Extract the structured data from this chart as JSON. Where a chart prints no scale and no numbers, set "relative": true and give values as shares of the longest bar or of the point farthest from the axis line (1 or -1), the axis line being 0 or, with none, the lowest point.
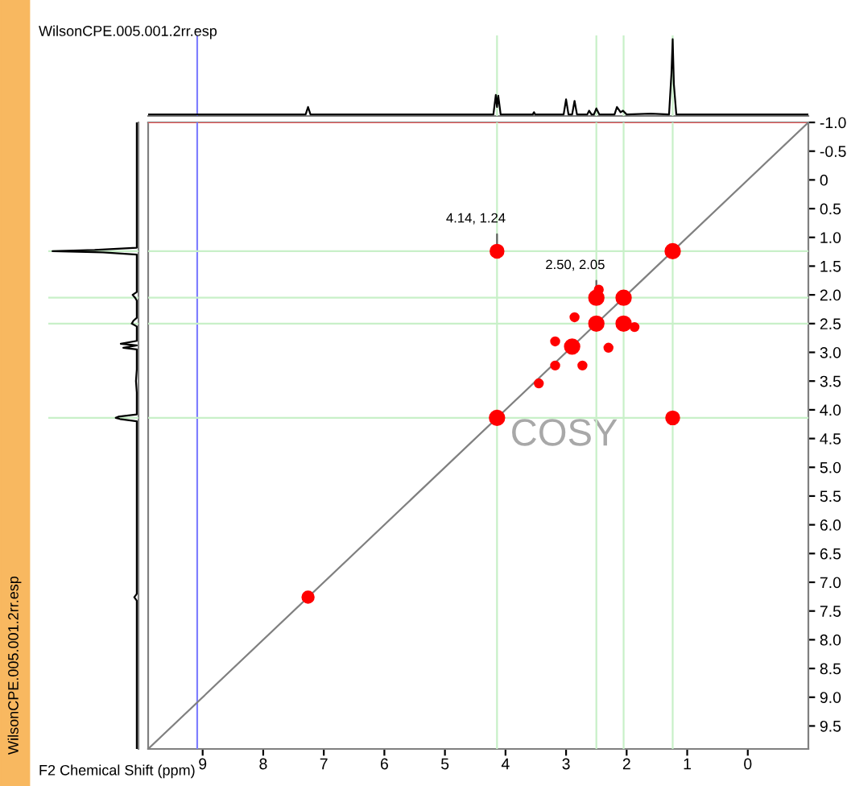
{
  "chart_data": [
    {
      "type": "line",
      "title": "WilsonCPE.005.001.2rr.esp",
      "relative": true,
      "xlim": [
        9.9,
        -1.0
      ],
      "tick_labels": false,
      "grid": false,
      "ref_lines": [
        {
          "axis": "x",
          "value": 9.09,
          "color": "#7f7fff"
        },
        {
          "axis": "x",
          "value": 4.14,
          "color": "#c8f0c8"
        },
        {
          "axis": "x",
          "value": 2.5,
          "color": "#c8f0c8"
        },
        {
          "axis": "x",
          "value": 2.05,
          "color": "#c8f0c8"
        },
        {
          "axis": "x",
          "value": 1.24,
          "color": "#c8f0c8"
        }
      ],
      "series": [
        {
          "color": "#000000",
          "x": [
            9.9,
            7.3,
            7.26,
            7.22,
            4.2,
            4.16,
            4.14,
            4.12,
            4.08,
            3.55,
            3.53,
            3.51,
            3.04,
            3.0,
            2.96,
            2.9,
            2.86,
            2.82,
            2.65,
            2.62,
            2.58,
            2.54,
            2.5,
            2.45,
            2.2,
            2.16,
            2.1,
            2.06,
            2.0,
            1.6,
            1.3,
            1.26,
            1.24,
            1.22,
            1.18,
            -1.0
          ],
          "values": [
            0,
            0,
            0.1,
            0,
            0,
            0.26,
            0.1,
            0.25,
            0,
            0,
            0.03,
            0,
            0,
            0.2,
            0,
            0,
            0.18,
            0,
            0,
            0.05,
            0,
            0,
            0.08,
            0,
            0,
            0.1,
            0.03,
            0.05,
            0,
            0.01,
            0,
            0.55,
            1.0,
            0.4,
            0,
            0
          ]
        }
      ]
    },
    {
      "type": "line",
      "ylabel": "WilsonCPE.005.001.2rr.esp",
      "relative": true,
      "orientation": "horizontal",
      "ylim": [
        9.9,
        -1.0
      ],
      "tick_labels": false,
      "grid": false,
      "ref_lines": [
        {
          "axis": "y",
          "value": 1.24,
          "color": "#c8f0c8"
        },
        {
          "axis": "y",
          "value": 2.05,
          "color": "#c8f0c8"
        },
        {
          "axis": "y",
          "value": 2.5,
          "color": "#c8f0c8"
        },
        {
          "axis": "y",
          "value": 4.14,
          "color": "#c8f0c8"
        }
      ],
      "series": [
        {
          "color": "#000000",
          "x": [
            -1.0,
            1.18,
            1.22,
            1.24,
            1.26,
            1.3,
            1.95,
            2.0,
            2.05,
            2.1,
            2.4,
            2.45,
            2.5,
            2.55,
            2.8,
            2.85,
            2.88,
            2.92,
            2.95,
            3.0,
            3.3,
            3.5,
            3.7,
            4.08,
            4.12,
            4.14,
            4.16,
            4.2,
            7.2,
            7.26,
            7.32,
            9.9
          ],
          "values": [
            0,
            0,
            -0.5,
            -1.0,
            -0.4,
            0,
            0,
            -0.05,
            -0.02,
            0,
            0,
            -0.04,
            -0.06,
            0,
            0,
            -0.19,
            0,
            -0.16,
            0,
            0,
            0,
            -0.01,
            0,
            0,
            -0.22,
            -0.25,
            -0.2,
            0,
            0,
            -0.03,
            0,
            0
          ]
        }
      ]
    },
    {
      "type": "scatter",
      "xlabel": "F2 Chemical Shift (ppm)",
      "xlim": [
        9.9,
        -1.0
      ],
      "ylim": [
        9.9,
        -1.0
      ],
      "xticks": [
        9,
        8,
        7,
        6,
        5,
        4,
        3,
        2,
        1,
        0
      ],
      "yticks": [
        {
          "value": -1.0,
          "label": "-1.0"
        },
        {
          "value": -0.5,
          "label": "-0.5"
        },
        0,
        0.5,
        {
          "value": 1,
          "label": "1.0"
        },
        1.5,
        {
          "value": 2,
          "label": "2.0"
        },
        2.5,
        {
          "value": 3,
          "label": "3.0"
        },
        3.5,
        {
          "value": 4,
          "label": "4.0"
        },
        4.5,
        {
          "value": 5,
          "label": "5.0"
        },
        5.5,
        {
          "value": 6,
          "label": "6.0"
        },
        6.5,
        {
          "value": 7,
          "label": "7.0"
        },
        7.5,
        {
          "value": 8,
          "label": "8.0"
        },
        8.5,
        {
          "value": 9,
          "label": "9.0"
        },
        9.5
      ],
      "tick_labels": "xy",
      "grid": false,
      "marker": "circle",
      "annotations": [
        {
          "text": "4.14, 1.24",
          "x": 4.14,
          "y": 1.24
        },
        {
          "text": "2.50, 2.05",
          "x": 2.5,
          "y": 2.05
        },
        "COSY"
      ],
      "ref_lines": [
        {
          "axis": "y",
          "value": -1.0,
          "color": "#ff6060"
        },
        {
          "axis": "x",
          "value": 9.09,
          "color": "#7f7fff"
        },
        {
          "axis": "x",
          "value": 4.14,
          "color": "#c8f0c8"
        },
        {
          "axis": "x",
          "value": 2.5,
          "color": "#c8f0c8"
        },
        {
          "axis": "x",
          "value": 2.05,
          "color": "#c8f0c8"
        },
        {
          "axis": "x",
          "value": 1.24,
          "color": "#c8f0c8"
        },
        {
          "axis": "y",
          "value": 1.24,
          "color": "#c8f0c8"
        },
        {
          "axis": "y",
          "value": 2.05,
          "color": "#c8f0c8"
        },
        {
          "axis": "y",
          "value": 2.5,
          "color": "#c8f0c8"
        },
        {
          "axis": "y",
          "value": 4.14,
          "color": "#c8f0c8"
        }
      ],
      "series": [
        {
          "type": "line",
          "color": "#808080",
          "marker": "none",
          "x": [
            9.9,
            -1.0
          ],
          "values": [
            9.9,
            -1.0
          ]
        },
        {
          "color": "#ff0000",
          "x": [
            1.24,
            4.14,
            7.26,
            2.05,
            2.5,
            2.9,
            4.14,
            1.24,
            2.5,
            2.05,
            2.86,
            3.18,
            2.73,
            2.3,
            1.87,
            2.46,
            3.45,
            3.18
          ],
          "values": [
            1.24,
            4.14,
            7.26,
            2.05,
            2.5,
            2.9,
            1.24,
            4.14,
            2.05,
            2.5,
            2.39,
            2.81,
            3.23,
            2.92,
            2.56,
            1.91,
            3.54,
            3.23
          ],
          "sizes": [
            1,
            1,
            0.6,
            1,
            1,
            1,
            0.8,
            0.8,
            1,
            1,
            0.3,
            0.3,
            0.3,
            0.3,
            0.3,
            0.3,
            0.3,
            0.3
          ]
        }
      ]
    }
  ]
}
